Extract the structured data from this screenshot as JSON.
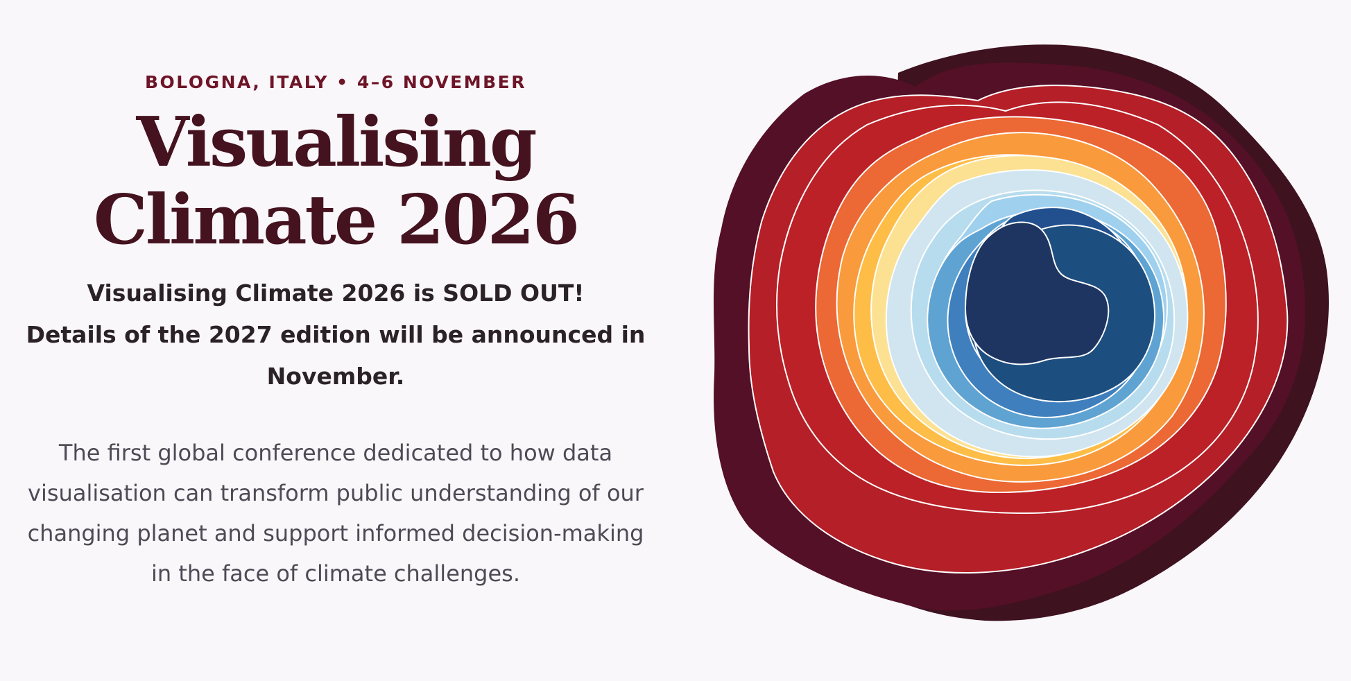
{
  "event": {
    "location_dates": "BOLOGNA, ITALY • 4–6 NOVEMBER",
    "title": "Visualising Climate 2026",
    "sold_out_line1": "Visualising Climate 2026 is SOLD OUT!",
    "sold_out_line2": "Details of the 2027 edition will be announced in November.",
    "description": "The first global conference dedicated to how data visualisation can transform public understanding of our changing planet and support informed decision-making in the face of climate challenges."
  },
  "artwork": {
    "name": "climate-stripes-rings",
    "colors": [
      "#3f1220",
      "#541026",
      "#bb2127",
      "#ec6834",
      "#f99a3c",
      "#fdbd47",
      "#fde192",
      "#d0e5f0",
      "#b7dcee",
      "#9fd0ee",
      "#5fa3d2",
      "#3f7fbd",
      "#22508f",
      "#1d4e80",
      "#1e3561"
    ]
  }
}
